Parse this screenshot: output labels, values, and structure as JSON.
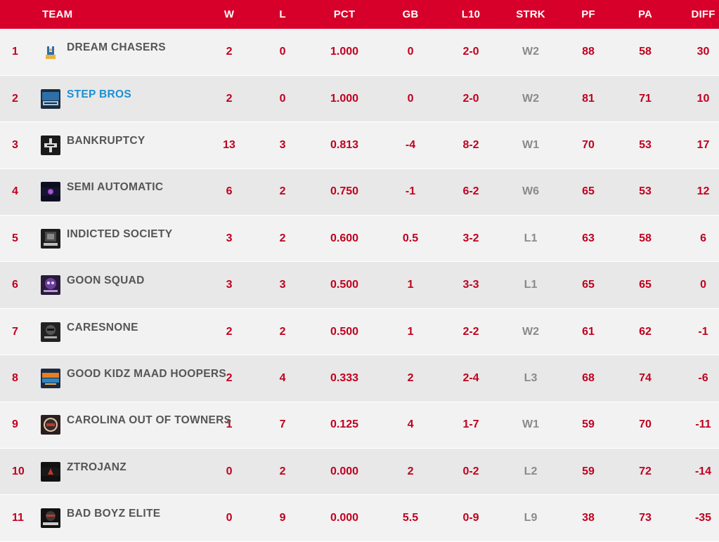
{
  "headers": {
    "team": "TEAM",
    "w": "W",
    "l": "L",
    "pct": "PCT",
    "gb": "GB",
    "l10": "L10",
    "strk": "STRK",
    "pf": "PF",
    "pa": "PA",
    "diff": "DIFF"
  },
  "colors": {
    "header_bg": "#d6002a",
    "stat_text": "#c0001f",
    "team_text": "#555555",
    "link_text": "#1b8fd6",
    "streak_text": "#8a8a8a"
  },
  "rows": [
    {
      "rank": "1",
      "team": "DREAM CHASERS",
      "logo_icon": "dream-chasers-logo-icon",
      "w": "2",
      "l": "0",
      "pct": "1.000",
      "gb": "0",
      "l10": "2-0",
      "strk": "W2",
      "pf": "88",
      "pa": "58",
      "diff": "30"
    },
    {
      "rank": "2",
      "team": "STEP BROS",
      "logo_icon": "step-bros-logo-icon",
      "w": "2",
      "l": "0",
      "pct": "1.000",
      "gb": "0",
      "l10": "2-0",
      "strk": "W2",
      "pf": "81",
      "pa": "71",
      "diff": "10",
      "link": true
    },
    {
      "rank": "3",
      "team": "BANKRUPTCY",
      "logo_icon": "bankruptcy-logo-icon",
      "w": "13",
      "l": "3",
      "pct": "0.813",
      "gb": "-4",
      "l10": "8-2",
      "strk": "W1",
      "pf": "70",
      "pa": "53",
      "diff": "17"
    },
    {
      "rank": "4",
      "team": "SEMI AUTOMATIC",
      "logo_icon": "semi-automatic-logo-icon",
      "w": "6",
      "l": "2",
      "pct": "0.750",
      "gb": "-1",
      "l10": "6-2",
      "strk": "W6",
      "pf": "65",
      "pa": "53",
      "diff": "12"
    },
    {
      "rank": "5",
      "team": "INDICTED SOCIETY",
      "logo_icon": "indicted-society-logo-icon",
      "w": "3",
      "l": "2",
      "pct": "0.600",
      "gb": "0.5",
      "l10": "3-2",
      "strk": "L1",
      "pf": "63",
      "pa": "58",
      "diff": "6"
    },
    {
      "rank": "6",
      "team": "GOON SQUAD",
      "logo_icon": "goon-squad-logo-icon",
      "w": "3",
      "l": "3",
      "pct": "0.500",
      "gb": "1",
      "l10": "3-3",
      "strk": "L1",
      "pf": "65",
      "pa": "65",
      "diff": "0"
    },
    {
      "rank": "7",
      "team": "CARESNONE",
      "logo_icon": "caresnone-logo-icon",
      "w": "2",
      "l": "2",
      "pct": "0.500",
      "gb": "1",
      "l10": "2-2",
      "strk": "W2",
      "pf": "61",
      "pa": "62",
      "diff": "-1"
    },
    {
      "rank": "8",
      "team": "GOOD KIDZ MAAD HOOPERS",
      "logo_icon": "good-kidz-logo-icon",
      "w": "2",
      "l": "4",
      "pct": "0.333",
      "gb": "2",
      "l10": "2-4",
      "strk": "L3",
      "pf": "68",
      "pa": "74",
      "diff": "-6"
    },
    {
      "rank": "9",
      "team": "CAROLINA OUT OF TOWNERS",
      "logo_icon": "carolina-logo-icon",
      "w": "1",
      "l": "7",
      "pct": "0.125",
      "gb": "4",
      "l10": "1-7",
      "strk": "W1",
      "pf": "59",
      "pa": "70",
      "diff": "-11"
    },
    {
      "rank": "10",
      "team": "ZTROJANZ",
      "logo_icon": "ztrojanz-logo-icon",
      "w": "0",
      "l": "2",
      "pct": "0.000",
      "gb": "2",
      "l10": "0-2",
      "strk": "L2",
      "pf": "59",
      "pa": "72",
      "diff": "-14"
    },
    {
      "rank": "11",
      "team": "BAD BOYZ ELITE",
      "logo_icon": "bad-boyz-elite-logo-icon",
      "w": "0",
      "l": "9",
      "pct": "0.000",
      "gb": "5.5",
      "l10": "0-9",
      "strk": "L9",
      "pf": "38",
      "pa": "73",
      "diff": "-35"
    }
  ]
}
